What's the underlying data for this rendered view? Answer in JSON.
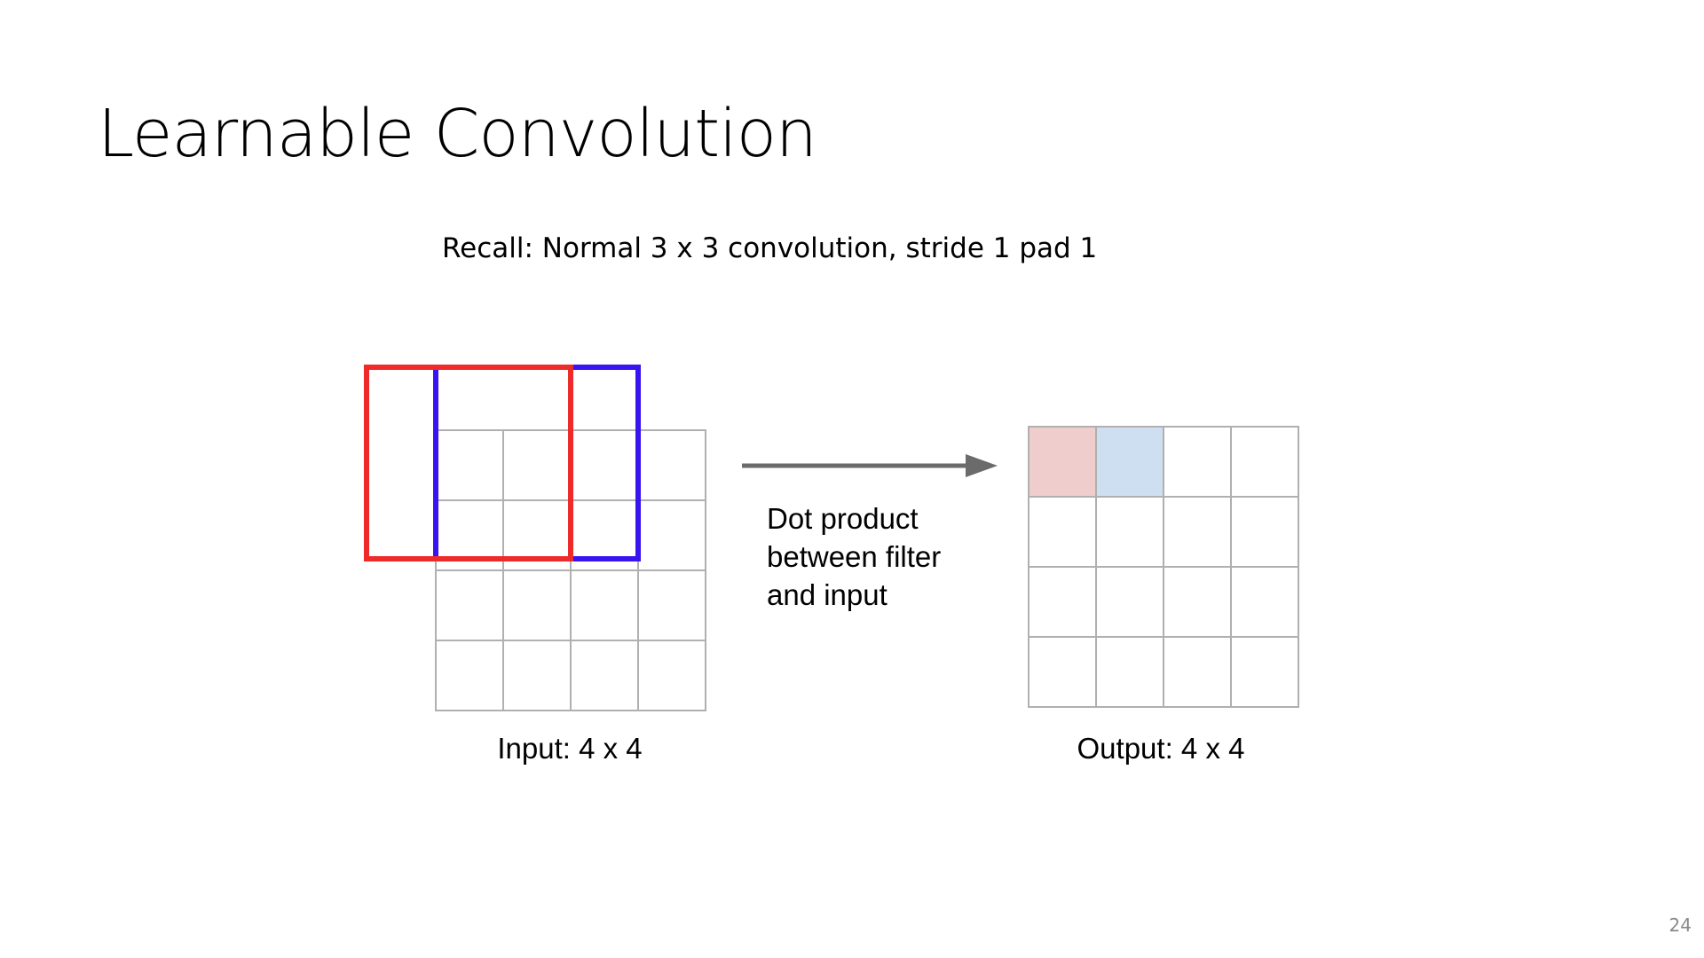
{
  "slide": {
    "title": "Learnable Convolution",
    "subtitle": "Recall: Normal 3 x 3 convolution, stride 1 pad 1",
    "page_number": "24"
  },
  "diagram": {
    "input_label": "Input: 4 x 4",
    "output_label": "Output: 4 x 4",
    "arrow_text": [
      "Dot product",
      "between filter",
      "and input"
    ],
    "input_grid": {
      "rows": 4,
      "cols": 4
    },
    "output_grid": {
      "rows": 4,
      "cols": 4,
      "highlighted_cells": [
        {
          "row": 0,
          "col": 0,
          "color": "#f0cdcd"
        },
        {
          "row": 0,
          "col": 1,
          "color": "#cfdff2"
        }
      ]
    },
    "filters": [
      {
        "name": "red-filter",
        "color": "#ef2a2a"
      },
      {
        "name": "blue-filter",
        "color": "#3a14f0"
      }
    ],
    "grid_line_color": "#b0b0b0",
    "arrow_color": "#6b6b6b"
  }
}
